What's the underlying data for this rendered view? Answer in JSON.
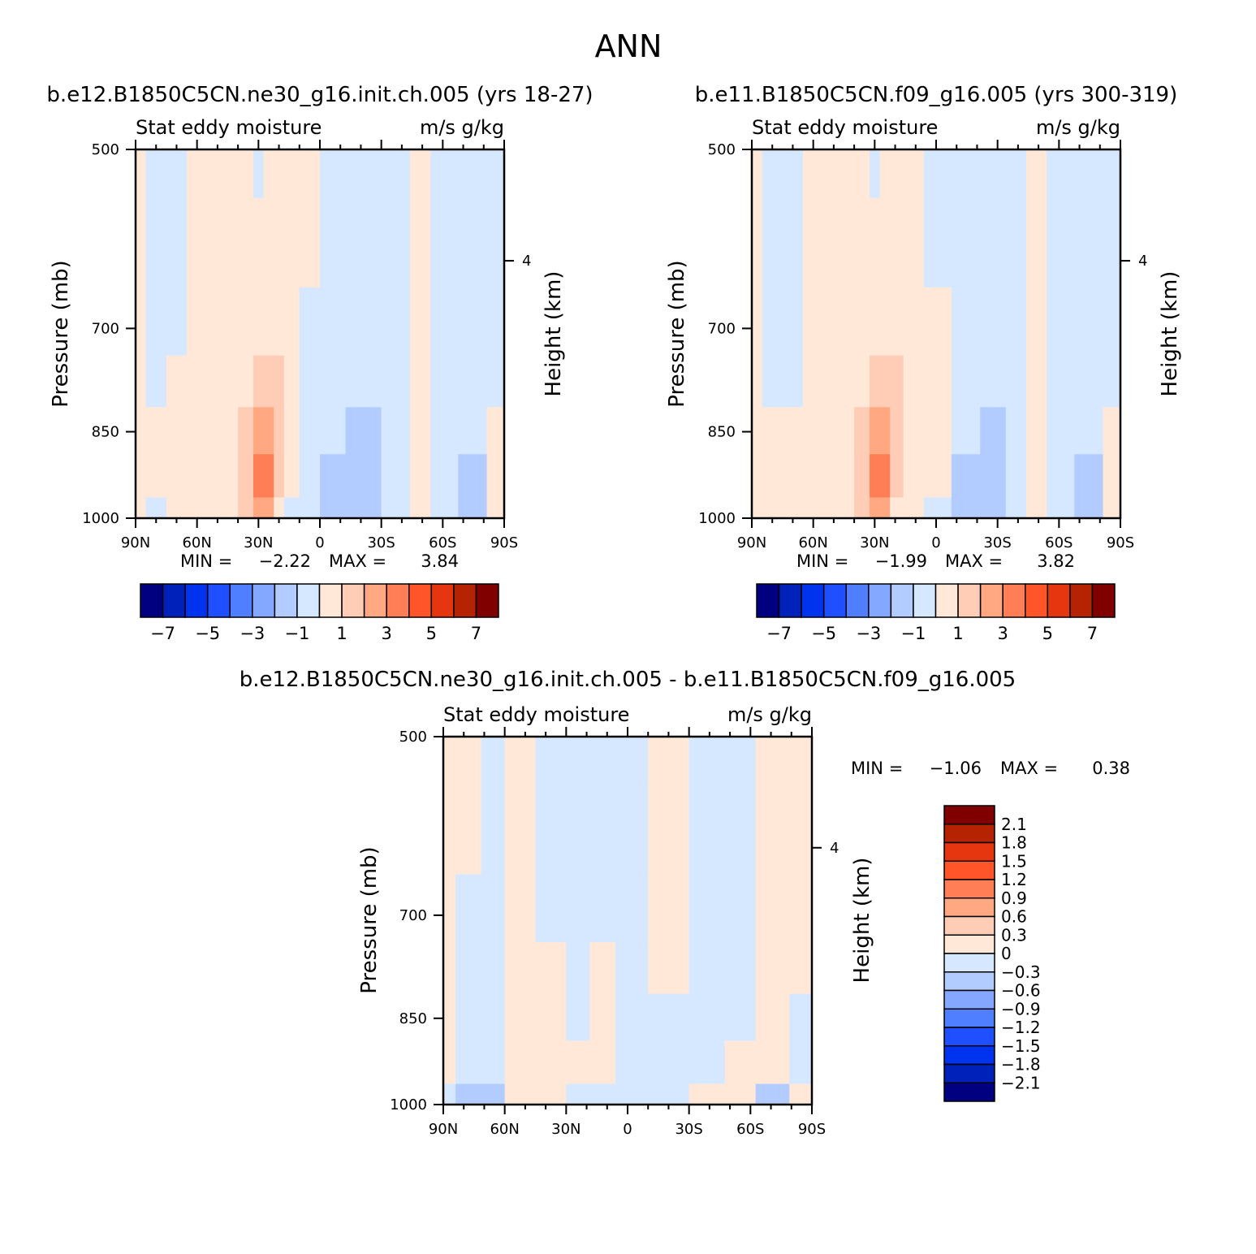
{
  "page_title": "ANN",
  "colors": {
    "abs_levels": [
      "#000080",
      "#0022bb",
      "#0033ee",
      "#1f4fff",
      "#4f7fff",
      "#84a8ff",
      "#b3ccff",
      "#d6e8ff",
      "#ffe8d8",
      "#ffccb5",
      "#ffa882",
      "#ff7e55",
      "#ff5528",
      "#e63610",
      "#b52303",
      "#800000"
    ],
    "diff_levels": [
      "#000080",
      "#0022bb",
      "#0033ee",
      "#1f4fff",
      "#4f7fff",
      "#84a8ff",
      "#b3ccff",
      "#d6e8ff",
      "#ffe8d8",
      "#ffccb5",
      "#ffa882",
      "#ff7e55",
      "#ff5528",
      "#e63610",
      "#b52303",
      "#800000"
    ]
  },
  "panels": [
    {
      "id": "p1",
      "run_title": "b.e12.B1850C5CN.ne30_g16.init.ch.005 (yrs 18-27)",
      "left_label": "Stat eddy moisture",
      "right_label": "m/s g/kg",
      "min_label": "MIN =",
      "min_value": "-2.22",
      "max_label": "MAX =",
      "max_value": "3.84",
      "y_axis_label": "Pressure (mb)",
      "y2_axis_label": "Height (km)"
    },
    {
      "id": "p2",
      "run_title": "b.e11.B1850C5CN.f09_g16.005 (yrs 300-319)",
      "left_label": "Stat eddy moisture",
      "right_label": "m/s g/kg",
      "min_label": "MIN =",
      "min_value": "-1.99",
      "max_label": "MAX =",
      "max_value": "3.82",
      "y_axis_label": "Pressure (mb)",
      "y2_axis_label": "Height (km)"
    },
    {
      "id": "p3",
      "run_title": "b.e12.B1850C5CN.ne30_g16.init.ch.005 - b.e11.B1850C5CN.f09_g16.005",
      "left_label": "Stat eddy moisture",
      "right_label": "m/s g/kg",
      "min_label": "MIN =",
      "min_value": "-1.06",
      "max_label": "MAX =",
      "max_value": "0.38",
      "y_axis_label": "Pressure (mb)",
      "y2_axis_label": "Height (km)"
    }
  ],
  "chart_data": [
    {
      "type": "heatmap",
      "title": "b.e12.B1850C5CN.ne30_g16.init.ch.005 (yrs 18-27)",
      "subtitle_left": "Stat eddy moisture",
      "units": "m/s g/kg",
      "x_tick_labels": [
        "90N",
        "60N",
        "30N",
        "0",
        "30S",
        "60S",
        "90S"
      ],
      "x_tick_values": [
        90,
        60,
        30,
        0,
        -30,
        -60,
        -90
      ],
      "xlim": [
        90,
        -90
      ],
      "y_tick_labels": [
        "500",
        "700",
        "850",
        "1000"
      ],
      "y_tick_values": [
        500,
        700,
        850,
        1000
      ],
      "ylim": [
        1000,
        500
      ],
      "y_scale": "log",
      "ylabel": "Pressure (mb)",
      "y2label": "Height (km)",
      "y2_ticks": [
        4
      ],
      "min": -2.22,
      "max": 3.84,
      "colorbar_tick_labels": [
        "-7",
        "-5",
        "-3",
        "-1",
        "1",
        "3",
        "5",
        "7"
      ],
      "colorbar_levels": [
        -7,
        -6,
        -5,
        -4,
        -3,
        -2,
        -1,
        0,
        1,
        2,
        3,
        4,
        5,
        6,
        7
      ],
      "field_bands": [
        {
          "x": 90,
          "values": [
            0.5,
            0.5,
            0.5,
            0.5,
            0.5,
            0.5,
            0.3
          ]
        },
        {
          "x": 80,
          "values": [
            -0.5,
            -0.5,
            -0.5,
            -0.5,
            0.5,
            0.5,
            -0.3
          ]
        },
        {
          "x": 70,
          "values": [
            -0.5,
            -0.5,
            -0.5,
            0.5,
            0.5,
            0.5,
            0.5
          ]
        },
        {
          "x": 60,
          "values": [
            0.5,
            0.5,
            0.5,
            0.5,
            0.5,
            0.5,
            0.5
          ]
        },
        {
          "x": 45,
          "values": [
            0.5,
            0.5,
            0.5,
            0.5,
            0.5,
            0.5,
            0.5
          ]
        },
        {
          "x": 35,
          "values": [
            0.5,
            0.5,
            0.5,
            0.5,
            1.5,
            1.8,
            1.5
          ]
        },
        {
          "x": 30,
          "values": [
            -0.5,
            0.5,
            0.5,
            1.5,
            2.5,
            3.5,
            2.5
          ]
        },
        {
          "x": 25,
          "values": [
            0.5,
            0.5,
            0.5,
            1.5,
            2.5,
            3.8,
            2.5
          ]
        },
        {
          "x": 20,
          "values": [
            0.5,
            0.5,
            0.5,
            1.5,
            1.5,
            1.5,
            0.5
          ]
        },
        {
          "x": 15,
          "values": [
            0.5,
            0.5,
            0.5,
            0.5,
            0.5,
            0.5,
            -0.5
          ]
        },
        {
          "x": 5,
          "values": [
            0.5,
            0.5,
            -0.5,
            -0.5,
            -0.5,
            -0.5,
            -0.5
          ]
        },
        {
          "x": -5,
          "values": [
            -0.5,
            -0.5,
            -0.5,
            -0.5,
            -0.5,
            -1.5,
            -1.5
          ]
        },
        {
          "x": -20,
          "values": [
            -0.5,
            -0.5,
            -0.5,
            -0.5,
            -1.5,
            -1.5,
            -1.5
          ]
        },
        {
          "x": -40,
          "values": [
            -0.5,
            -0.5,
            -0.5,
            -0.5,
            -0.5,
            -0.5,
            -0.5
          ]
        },
        {
          "x": -48,
          "values": [
            0.5,
            0.5,
            0.5,
            0.5,
            0.5,
            0.5,
            0.5
          ]
        },
        {
          "x": -60,
          "values": [
            -0.5,
            -0.5,
            -0.5,
            -0.5,
            -0.5,
            -0.5,
            -0.5
          ]
        },
        {
          "x": -75,
          "values": [
            -0.5,
            -0.5,
            -0.5,
            -0.5,
            -0.5,
            -1.5,
            -1.5
          ]
        },
        {
          "x": -88,
          "values": [
            -0.5,
            -0.5,
            -0.5,
            -0.5,
            0.5,
            0.5,
            0.5
          ]
        }
      ]
    },
    {
      "type": "heatmap",
      "title": "b.e11.B1850C5CN.f09_g16.005 (yrs 300-319)",
      "subtitle_left": "Stat eddy moisture",
      "units": "m/s g/kg",
      "x_tick_labels": [
        "90N",
        "60N",
        "30N",
        "0",
        "30S",
        "60S",
        "90S"
      ],
      "x_tick_values": [
        90,
        60,
        30,
        0,
        -30,
        -60,
        -90
      ],
      "xlim": [
        90,
        -90
      ],
      "y_tick_labels": [
        "500",
        "700",
        "850",
        "1000"
      ],
      "y_tick_values": [
        500,
        700,
        850,
        1000
      ],
      "ylim": [
        1000,
        500
      ],
      "y_scale": "log",
      "ylabel": "Pressure (mb)",
      "y2label": "Height (km)",
      "y2_ticks": [
        4
      ],
      "min": -1.99,
      "max": 3.82,
      "colorbar_tick_labels": [
        "-7",
        "-5",
        "-3",
        "-1",
        "1",
        "3",
        "5",
        "7"
      ],
      "colorbar_levels": [
        -7,
        -6,
        -5,
        -4,
        -3,
        -2,
        -1,
        0,
        1,
        2,
        3,
        4,
        5,
        6,
        7
      ],
      "field_bands": [
        {
          "x": 90,
          "values": [
            0.5,
            0.5,
            0.5,
            0.5,
            0.5,
            0.5,
            0.5
          ]
        },
        {
          "x": 80,
          "values": [
            -0.5,
            -0.5,
            -0.5,
            -0.5,
            0.5,
            0.5,
            0.5
          ]
        },
        {
          "x": 70,
          "values": [
            -0.5,
            -0.5,
            -0.5,
            -0.5,
            0.5,
            0.5,
            0.5
          ]
        },
        {
          "x": 60,
          "values": [
            0.5,
            0.5,
            0.5,
            0.5,
            0.5,
            0.5,
            0.5
          ]
        },
        {
          "x": 45,
          "values": [
            0.5,
            0.5,
            0.5,
            0.5,
            0.5,
            0.5,
            0.5
          ]
        },
        {
          "x": 35,
          "values": [
            0.5,
            0.5,
            0.5,
            0.5,
            1.5,
            1.5,
            1.5
          ]
        },
        {
          "x": 30,
          "values": [
            -0.5,
            0.5,
            0.5,
            1.5,
            2.5,
            3.5,
            2.5
          ]
        },
        {
          "x": 25,
          "values": [
            0.5,
            0.5,
            0.5,
            1.5,
            2.5,
            3.8,
            2.5
          ]
        },
        {
          "x": 20,
          "values": [
            0.5,
            0.5,
            0.5,
            1.5,
            1.5,
            1.5,
            0.5
          ]
        },
        {
          "x": 12,
          "values": [
            0.5,
            0.5,
            0.5,
            0.5,
            0.5,
            0.5,
            0.5
          ]
        },
        {
          "x": 0,
          "values": [
            -0.5,
            -0.5,
            0.5,
            0.5,
            0.5,
            0.5,
            -0.5
          ]
        },
        {
          "x": -15,
          "values": [
            -0.5,
            -0.5,
            -0.5,
            -0.5,
            -0.5,
            -1.5,
            -1.5
          ]
        },
        {
          "x": -28,
          "values": [
            -0.5,
            -0.5,
            -0.5,
            -0.5,
            -1.5,
            -1.5,
            -1.5
          ]
        },
        {
          "x": -40,
          "values": [
            -0.5,
            -0.5,
            -0.5,
            -0.5,
            -0.5,
            -0.5,
            -0.5
          ]
        },
        {
          "x": -48,
          "values": [
            0.5,
            0.5,
            0.5,
            0.5,
            0.5,
            0.5,
            0.5
          ]
        },
        {
          "x": -60,
          "values": [
            -0.5,
            -0.5,
            -0.5,
            -0.5,
            -0.5,
            -0.5,
            -0.5
          ]
        },
        {
          "x": -75,
          "values": [
            -0.5,
            -0.5,
            -0.5,
            -0.5,
            -0.5,
            -1.5,
            -1.5
          ]
        },
        {
          "x": -88,
          "values": [
            -0.5,
            -0.5,
            -0.5,
            -0.5,
            0.5,
            0.5,
            0.5
          ]
        }
      ]
    },
    {
      "type": "heatmap",
      "title": "b.e12.B1850C5CN.ne30_g16.init.ch.005 - b.e11.B1850C5CN.f09_g16.005",
      "subtitle_left": "Stat eddy moisture",
      "units": "m/s g/kg",
      "x_tick_labels": [
        "90N",
        "60N",
        "30N",
        "0",
        "30S",
        "60S",
        "90S"
      ],
      "x_tick_values": [
        90,
        60,
        30,
        0,
        -30,
        -60,
        -90
      ],
      "xlim": [
        90,
        -90
      ],
      "y_tick_labels": [
        "500",
        "700",
        "850",
        "1000"
      ],
      "y_tick_values": [
        500,
        700,
        850,
        1000
      ],
      "ylim": [
        1000,
        500
      ],
      "y_scale": "log",
      "ylabel": "Pressure (mb)",
      "y2label": "Height (km)",
      "y2_ticks": [
        4
      ],
      "min": -1.06,
      "max": 0.38,
      "colorbar_tick_labels": [
        "2.1",
        "1.8",
        "1.5",
        "1.2",
        "0.9",
        "0.6",
        "0.3",
        "0",
        "-0.3",
        "-0.6",
        "-0.9",
        "-1.2",
        "-1.5",
        "-1.8",
        "-2.1"
      ],
      "colorbar_levels": [
        -2.1,
        -1.8,
        -1.5,
        -1.2,
        -0.9,
        -0.6,
        -0.3,
        0,
        0.3,
        0.6,
        0.9,
        1.2,
        1.5,
        1.8,
        2.1
      ],
      "field_bands": [
        {
          "x": 90,
          "values": [
            0.15,
            0.15,
            0.15,
            0.15,
            0.15,
            0.15,
            -0.15
          ]
        },
        {
          "x": 78,
          "values": [
            0.15,
            0.15,
            -0.15,
            -0.15,
            -0.15,
            -0.15,
            -0.45
          ]
        },
        {
          "x": 65,
          "values": [
            -0.15,
            -0.15,
            -0.15,
            -0.15,
            -0.15,
            -0.15,
            -0.45
          ]
        },
        {
          "x": 55,
          "values": [
            0.15,
            0.15,
            0.15,
            0.15,
            0.15,
            0.15,
            0.15
          ]
        },
        {
          "x": 35,
          "values": [
            -0.15,
            -0.15,
            -0.15,
            0.15,
            0.15,
            0.15,
            0.15
          ]
        },
        {
          "x": 25,
          "values": [
            -0.15,
            -0.15,
            -0.15,
            -0.15,
            -0.15,
            0.15,
            -0.15
          ]
        },
        {
          "x": 12,
          "values": [
            -0.15,
            -0.15,
            -0.15,
            0.15,
            0.15,
            0.15,
            -0.15
          ]
        },
        {
          "x": 0,
          "values": [
            -0.15,
            -0.15,
            -0.15,
            -0.15,
            -0.15,
            -0.15,
            -0.15
          ]
        },
        {
          "x": -20,
          "values": [
            0.15,
            0.15,
            0.15,
            0.15,
            -0.15,
            -0.15,
            -0.15
          ]
        },
        {
          "x": -40,
          "values": [
            -0.15,
            -0.15,
            -0.15,
            -0.15,
            -0.15,
            -0.15,
            0.15
          ]
        },
        {
          "x": -55,
          "values": [
            -0.15,
            -0.15,
            -0.15,
            -0.15,
            -0.15,
            0.15,
            0.15
          ]
        },
        {
          "x": -70,
          "values": [
            0.15,
            0.15,
            0.15,
            0.15,
            0.15,
            0.15,
            -0.45
          ]
        },
        {
          "x": -88,
          "values": [
            0.15,
            0.15,
            0.15,
            0.15,
            -0.15,
            -0.15,
            0.15
          ]
        }
      ]
    }
  ]
}
